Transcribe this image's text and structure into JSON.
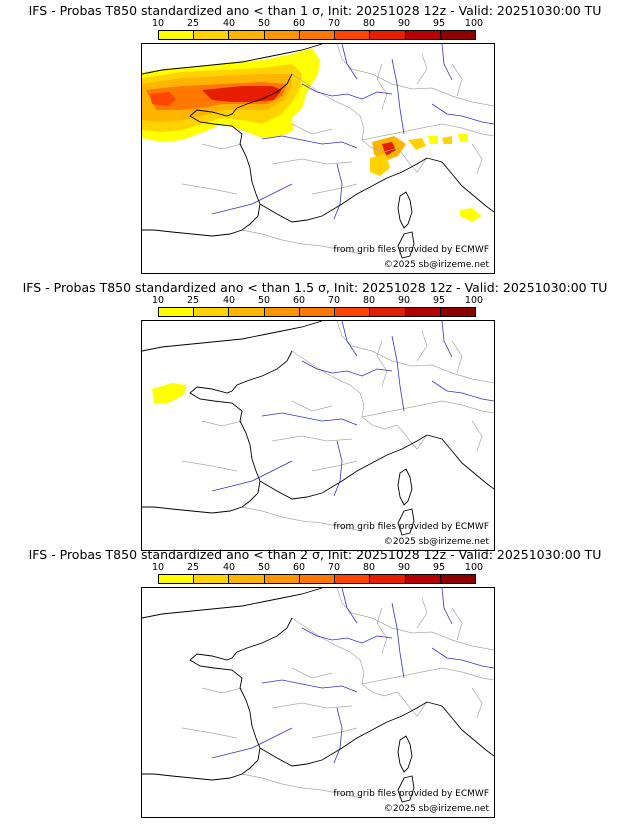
{
  "colorbar": {
    "ticks": [
      "10",
      "25",
      "40",
      "50",
      "60",
      "70",
      "80",
      "90",
      "95",
      "100"
    ],
    "colors": [
      "#ffff00",
      "#ffd200",
      "#ffb400",
      "#ff9600",
      "#ff7800",
      "#ff4600",
      "#e61e00",
      "#b40000",
      "#8c0000",
      "#5a0000"
    ]
  },
  "panels": [
    {
      "title": "IFS - Probas T850  standardized ano < than 1 σ, Init: 20251028 12z - Valid: 20251030:00 TU",
      "source": "from grib files provided by ECMWF",
      "copyright": "©2025 sb@irizeme.net"
    },
    {
      "title": "IFS - Probas T850  standardized ano < than 1.5 σ, Init: 20251028 12z - Valid: 20251030:00 TU",
      "source": "from grib files provided by ECMWF",
      "copyright": "©2025 sb@irizeme.net"
    },
    {
      "title": "IFS - Probas T850  standardized ano < than 2 σ, Init: 20251028 12z - Valid: 20251030:00 TU",
      "source": "from grib files provided by ECMWF",
      "copyright": "©2025 sb@irizeme.net"
    }
  ],
  "map_colors": {
    "coast": "#000000",
    "borders": "#aaaaaa",
    "rivers": "#3333cc"
  }
}
